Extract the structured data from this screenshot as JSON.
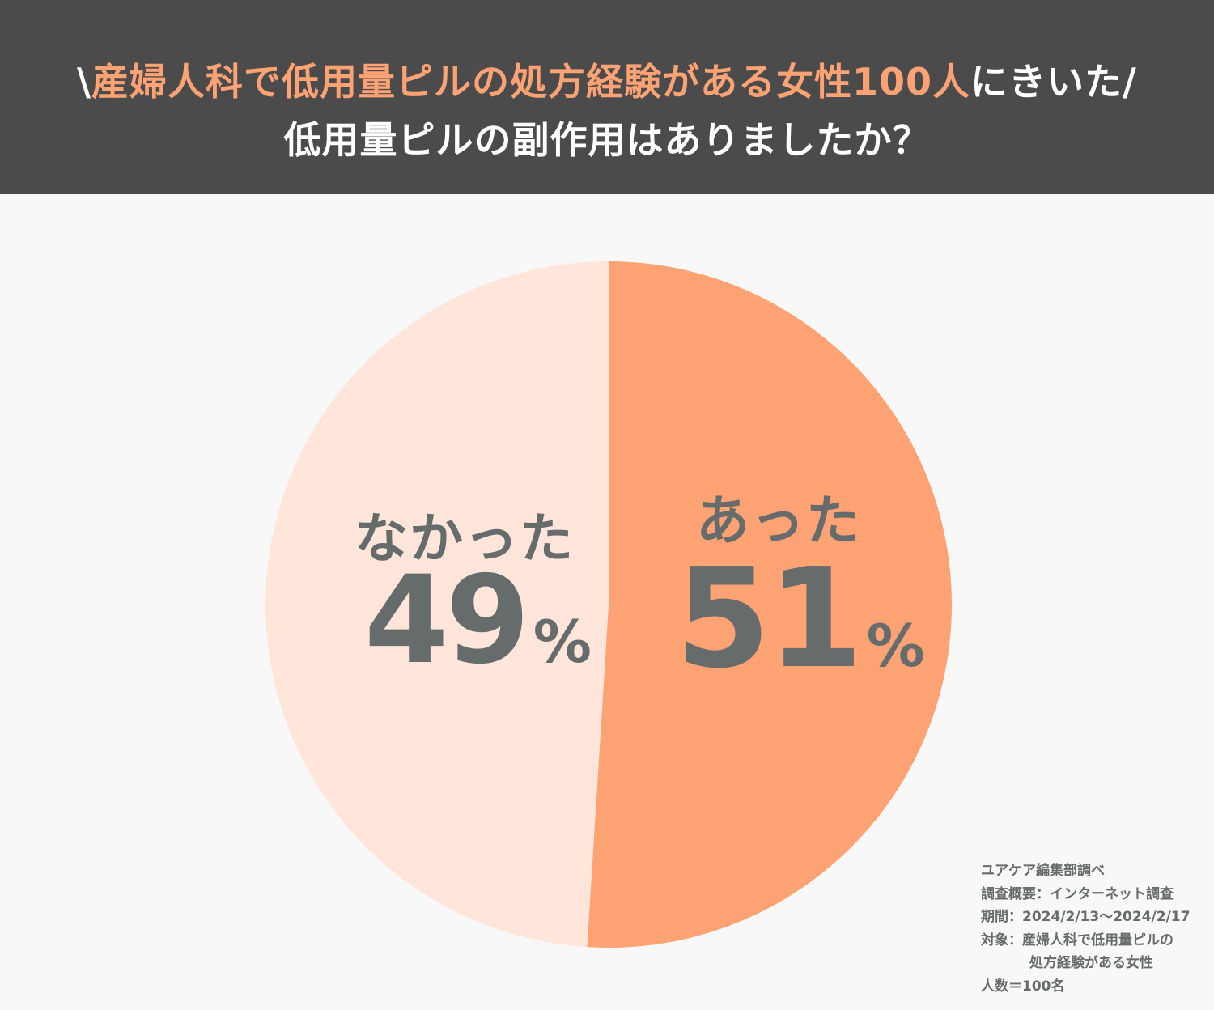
{
  "header": {
    "title_line1_prefix": "\\",
    "title_line1_highlight": "産婦人科で低用量ピルの処方経験がある女性100人",
    "title_line1_suffix": "にきいた/",
    "title_line2": "低用量ピルの副作用はありましたか？"
  },
  "colors": {
    "header_bg": "#4b4b4b",
    "accent": "#ffa274",
    "slice_yes": "#ffa274",
    "slice_no": "#ffe5da",
    "label_text": "#666b6b",
    "background": "#f8f8f8"
  },
  "chart_data": {
    "type": "pie",
    "start_angle": "12 o'clock",
    "direction": "clockwise",
    "slices": [
      {
        "label": "あった",
        "value": 51,
        "display": "51",
        "unit": "%",
        "color": "#ffa274"
      },
      {
        "label": "なかった",
        "value": 49,
        "display": "49",
        "unit": "%",
        "color": "#ffe5da"
      }
    ]
  },
  "source": {
    "lines": [
      "ユアケア編集部調べ",
      "調査概要：インターネット調査",
      "期間：2024/2/13〜2024/2/17",
      "対象：産婦人科で低用量ピルの",
      "処方経験がある女性",
      "人数＝100名"
    ]
  }
}
